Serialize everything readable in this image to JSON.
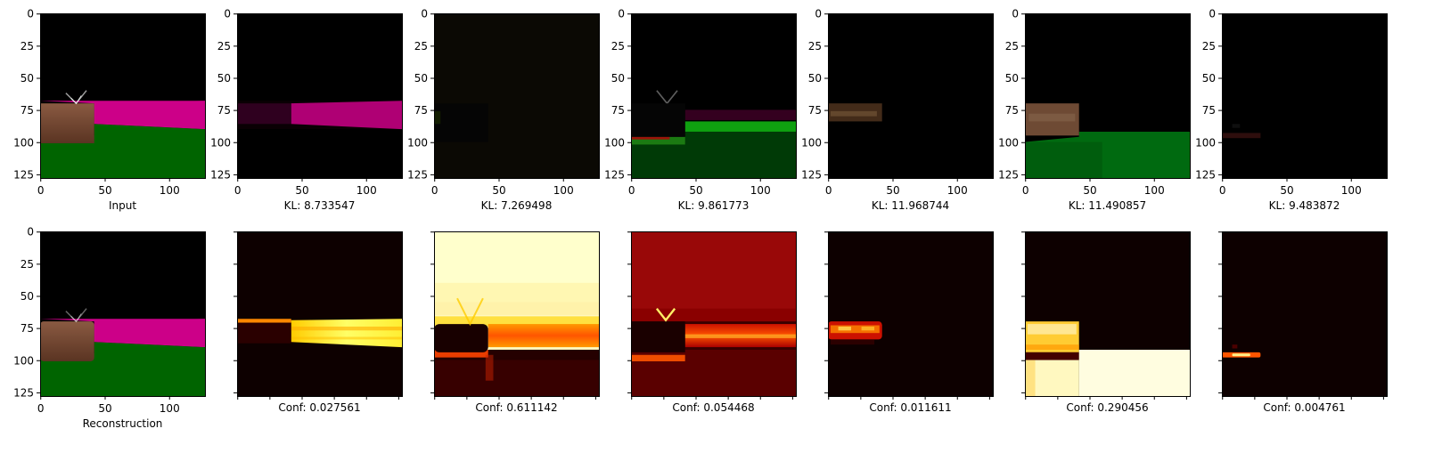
{
  "figure": {
    "ticks": [
      "0",
      "25",
      "50",
      "75",
      "100",
      "125"
    ],
    "xticks": [
      "0",
      "50",
      "100"
    ],
    "top_row": [
      {
        "caption": "Input",
        "kind": "input"
      },
      {
        "caption": "KL: 8.733547",
        "kind": "recon",
        "slot": 1
      },
      {
        "caption": "KL: 7.269498",
        "kind": "recon",
        "slot": 2
      },
      {
        "caption": "KL: 9.861773",
        "kind": "recon",
        "slot": 3
      },
      {
        "caption": "KL: 11.968744",
        "kind": "recon",
        "slot": 4
      },
      {
        "caption": "KL: 11.490857",
        "kind": "recon",
        "slot": 5
      },
      {
        "caption": "KL: 9.483872",
        "kind": "recon",
        "slot": 6
      }
    ],
    "bottom_row": [
      {
        "caption": "Reconstruction",
        "kind": "input"
      },
      {
        "caption": "Conf: 0.027561",
        "kind": "conf",
        "slot": 1
      },
      {
        "caption": "Conf: 0.611142",
        "kind": "conf",
        "slot": 2
      },
      {
        "caption": "Conf: 0.054468",
        "kind": "conf",
        "slot": 3
      },
      {
        "caption": "Conf: 0.011611",
        "kind": "conf",
        "slot": 4
      },
      {
        "caption": "Conf: 0.290456",
        "kind": "conf",
        "slot": 5
      },
      {
        "caption": "Conf: 0.004761",
        "kind": "conf",
        "slot": 6
      }
    ],
    "colors": {
      "sky": "#000000",
      "magenta": "#cc0088",
      "green": "#006400",
      "brown": "#7a4a32",
      "heat_dark": "#1a0000",
      "heat_bright": "#ffffcc",
      "heat_mid": "#ff6600",
      "heat_yellow": "#ffdd22"
    }
  }
}
